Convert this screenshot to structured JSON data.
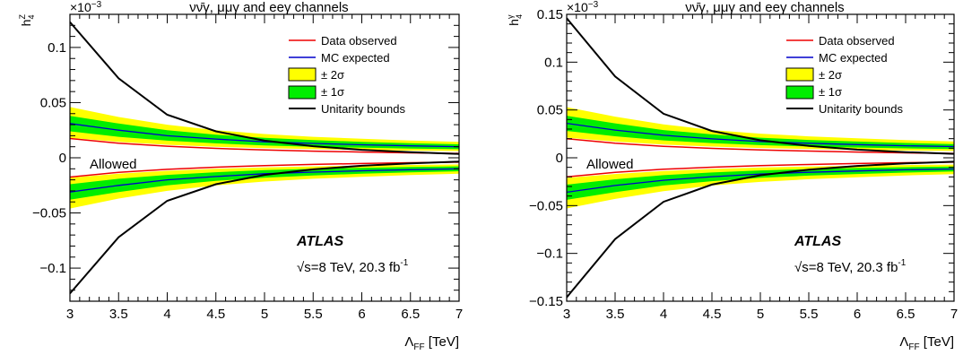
{
  "chart_data": [
    {
      "type": "line",
      "title": "νν̄γ, μμγ and eeγ channels",
      "xlabel": "Λ",
      "xlabel_sub": "FF",
      "xlabel_unit": " [TeV]",
      "ylabel": "h",
      "ylabel_sup": "Z",
      "ylabel_sub": "4",
      "exponent_label": "×10",
      "exponent_power": "−3",
      "xlim": [
        3,
        7
      ],
      "ylim": [
        -0.13,
        0.13
      ],
      "xticks": [
        3,
        3.5,
        4,
        4.5,
        5,
        5.5,
        6,
        6.5,
        7
      ],
      "xtick_labels": [
        "3",
        "3.5",
        "4",
        "4.5",
        "5",
        "5.5",
        "6",
        "6.5",
        "7"
      ],
      "yticks": [
        -0.1,
        -0.05,
        0,
        0.05,
        0.1
      ],
      "ytick_labels": [
        "−0.1",
        "−0.05",
        "0",
        "0.05",
        "0.1"
      ],
      "annotations": {
        "allowed": "Allowed",
        "experiment": "ATLAS",
        "energy": "√s=8 TeV, 20.3 fb",
        "lumi_sup": "-1"
      },
      "legend": {
        "placement": "top-right",
        "entries": [
          "Data observed",
          "MC expected",
          "± 2σ",
          "± 1σ",
          "Unitarity bounds"
        ]
      },
      "colors": {
        "observed": "#ee0000",
        "expected": "#0000cc",
        "band2": "#ffff00",
        "band1": "#00ee00",
        "unitarity": "#000000"
      },
      "x": [
        3,
        3.5,
        4,
        4.5,
        5,
        5.5,
        6,
        6.5,
        7
      ],
      "series": {
        "observed_upper": [
          0.0175,
          0.0132,
          0.0105,
          0.0085,
          0.0071,
          0.006,
          0.0052,
          0.0045,
          0.004
        ],
        "observed_lower": [
          -0.0175,
          -0.0132,
          -0.0105,
          -0.0085,
          -0.0071,
          -0.006,
          -0.0052,
          -0.0045,
          -0.004
        ],
        "expected_upper": [
          0.031,
          0.025,
          0.02,
          0.017,
          0.0145,
          0.013,
          0.0118,
          0.0108,
          0.01
        ],
        "expected_lower": [
          -0.031,
          -0.025,
          -0.02,
          -0.017,
          -0.0145,
          -0.013,
          -0.0118,
          -0.0108,
          -0.01
        ],
        "band1_upper_hi": [
          0.038,
          0.031,
          0.025,
          0.021,
          0.018,
          0.016,
          0.0145,
          0.0132,
          0.0122
        ],
        "band1_upper_lo": [
          0.024,
          0.019,
          0.0155,
          0.0131,
          0.0112,
          0.01,
          0.0091,
          0.0084,
          0.0078
        ],
        "band2_upper_hi": [
          0.046,
          0.037,
          0.03,
          0.025,
          0.0215,
          0.019,
          0.0172,
          0.0157,
          0.0145
        ],
        "band2_upper_lo": [
          0.018,
          0.0145,
          0.0118,
          0.01,
          0.0087,
          0.0078,
          0.0071,
          0.0065,
          0.0061
        ],
        "band1_lower_hi": [
          -0.024,
          -0.019,
          -0.0155,
          -0.0131,
          -0.0112,
          -0.01,
          -0.0091,
          -0.0084,
          -0.0078
        ],
        "band1_lower_lo": [
          -0.038,
          -0.031,
          -0.025,
          -0.021,
          -0.018,
          -0.016,
          -0.0145,
          -0.0132,
          -0.0122
        ],
        "band2_lower_hi": [
          -0.018,
          -0.0145,
          -0.0118,
          -0.01,
          -0.0087,
          -0.0078,
          -0.0071,
          -0.0065,
          -0.0061
        ],
        "band2_lower_lo": [
          -0.046,
          -0.037,
          -0.03,
          -0.025,
          -0.0215,
          -0.019,
          -0.0172,
          -0.0157,
          -0.0145
        ],
        "unitarity_upper": [
          0.123,
          0.072,
          0.039,
          0.024,
          0.0155,
          0.0105,
          0.0072,
          0.005,
          0.0035
        ],
        "unitarity_lower": [
          -0.123,
          -0.072,
          -0.039,
          -0.024,
          -0.0155,
          -0.0105,
          -0.0072,
          -0.005,
          -0.0035
        ]
      }
    },
    {
      "type": "line",
      "title": "νν̄γ, μμγ and eeγ channels",
      "xlabel": "Λ",
      "xlabel_sub": "FF",
      "xlabel_unit": " [TeV]",
      "ylabel": "h",
      "ylabel_sup": "γ",
      "ylabel_sub": "4",
      "exponent_label": "×10",
      "exponent_power": "−3",
      "xlim": [
        3,
        7
      ],
      "ylim": [
        -0.15,
        0.15
      ],
      "xticks": [
        3,
        3.5,
        4,
        4.5,
        5,
        5.5,
        6,
        6.5,
        7
      ],
      "xtick_labels": [
        "3",
        "3.5",
        "4",
        "4.5",
        "5",
        "5.5",
        "6",
        "6.5",
        "7"
      ],
      "yticks": [
        -0.15,
        -0.1,
        -0.05,
        0,
        0.05,
        0.1,
        0.15
      ],
      "ytick_labels": [
        "−0.15",
        "−0.1",
        "−0.05",
        "0",
        "0.05",
        "0.1",
        "0.15"
      ],
      "annotations": {
        "allowed": "Allowed",
        "experiment": "ATLAS",
        "energy": "√s=8 TeV, 20.3 fb",
        "lumi_sup": "-1"
      },
      "legend": {
        "placement": "top-right",
        "entries": [
          "Data observed",
          "MC expected",
          "± 2σ",
          "± 1σ",
          "Unitarity bounds"
        ]
      },
      "colors": {
        "observed": "#ee0000",
        "expected": "#0000cc",
        "band2": "#ffff00",
        "band1": "#00ee00",
        "unitarity": "#000000"
      },
      "x": [
        3,
        3.5,
        4,
        4.5,
        5,
        5.5,
        6,
        6.5,
        7
      ],
      "series": {
        "observed_upper": [
          0.02,
          0.0152,
          0.012,
          0.0098,
          0.0082,
          0.007,
          0.006,
          0.0052,
          0.0046
        ],
        "observed_lower": [
          -0.02,
          -0.0152,
          -0.012,
          -0.0098,
          -0.0082,
          -0.007,
          -0.006,
          -0.0052,
          -0.0046
        ],
        "expected_upper": [
          0.036,
          0.029,
          0.0235,
          0.0198,
          0.017,
          0.0152,
          0.0138,
          0.0126,
          0.0117
        ],
        "expected_lower": [
          -0.036,
          -0.029,
          -0.0235,
          -0.0198,
          -0.017,
          -0.0152,
          -0.0138,
          -0.0126,
          -0.0117
        ],
        "band1_upper_hi": [
          0.044,
          0.036,
          0.029,
          0.0245,
          0.021,
          0.0187,
          0.017,
          0.0155,
          0.0143
        ],
        "band1_upper_lo": [
          0.028,
          0.0225,
          0.0182,
          0.0154,
          0.0132,
          0.0118,
          0.0107,
          0.0098,
          0.0091
        ],
        "band2_upper_hi": [
          0.053,
          0.043,
          0.035,
          0.029,
          0.0252,
          0.0224,
          0.0203,
          0.0185,
          0.0171
        ],
        "band2_upper_lo": [
          0.021,
          0.017,
          0.0138,
          0.0117,
          0.0102,
          0.0091,
          0.0083,
          0.0076,
          0.0071
        ],
        "band1_lower_hi": [
          -0.028,
          -0.0225,
          -0.0182,
          -0.0154,
          -0.0132,
          -0.0118,
          -0.0107,
          -0.0098,
          -0.0091
        ],
        "band1_lower_lo": [
          -0.044,
          -0.036,
          -0.029,
          -0.0245,
          -0.021,
          -0.0187,
          -0.017,
          -0.0155,
          -0.0143
        ],
        "band2_lower_hi": [
          -0.021,
          -0.017,
          -0.0138,
          -0.0117,
          -0.0102,
          -0.0091,
          -0.0083,
          -0.0076,
          -0.0071
        ],
        "band2_lower_lo": [
          -0.053,
          -0.043,
          -0.035,
          -0.029,
          -0.0252,
          -0.0224,
          -0.0203,
          -0.0185,
          -0.0171
        ],
        "unitarity_upper": [
          0.146,
          0.085,
          0.046,
          0.028,
          0.0183,
          0.0124,
          0.0085,
          0.0059,
          0.0041
        ],
        "unitarity_lower": [
          -0.146,
          -0.085,
          -0.046,
          -0.028,
          -0.0183,
          -0.0124,
          -0.0085,
          -0.0059,
          -0.0041
        ]
      }
    }
  ]
}
